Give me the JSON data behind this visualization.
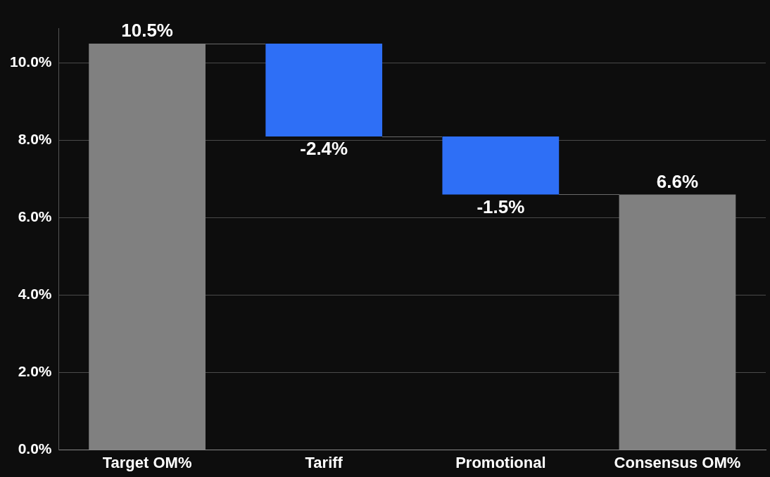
{
  "chart_data": {
    "type": "bar",
    "categories": [
      "Target OM%",
      "Tariff",
      "Promotional",
      "Consensus OM%"
    ],
    "values": [
      10.5,
      -2.4,
      -1.5,
      6.6
    ],
    "base": [
      0,
      10.5,
      8.1,
      0
    ],
    "colors": [
      "#808080",
      "#2e6ff6",
      "#2e6ff6",
      "#808080"
    ],
    "value_labels": [
      "10.5%",
      "-2.4%",
      "-1.5%",
      "6.6%"
    ],
    "ylim": [
      0,
      10.9
    ],
    "yticks": [
      {
        "value": 0,
        "label": "0.0%"
      },
      {
        "value": 2,
        "label": "2.0%"
      },
      {
        "value": 4,
        "label": "4.0%"
      },
      {
        "value": 6,
        "label": "6.0%"
      },
      {
        "value": 8,
        "label": "8.0%"
      },
      {
        "value": 10,
        "label": "10.0%"
      }
    ],
    "grid": "y",
    "legend": false
  }
}
